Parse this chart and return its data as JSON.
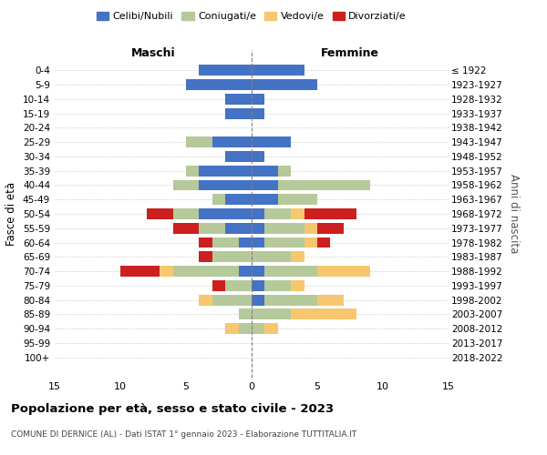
{
  "age_groups": [
    "0-4",
    "5-9",
    "10-14",
    "15-19",
    "20-24",
    "25-29",
    "30-34",
    "35-39",
    "40-44",
    "45-49",
    "50-54",
    "55-59",
    "60-64",
    "65-69",
    "70-74",
    "75-79",
    "80-84",
    "85-89",
    "90-94",
    "95-99",
    "100+"
  ],
  "birth_years": [
    "2018-2022",
    "2013-2017",
    "2008-2012",
    "2003-2007",
    "1998-2002",
    "1993-1997",
    "1988-1992",
    "1983-1987",
    "1978-1982",
    "1973-1977",
    "1968-1972",
    "1963-1967",
    "1958-1962",
    "1953-1957",
    "1948-1952",
    "1943-1947",
    "1938-1942",
    "1933-1937",
    "1928-1932",
    "1923-1927",
    "≤ 1922"
  ],
  "male": {
    "celibi": [
      4,
      5,
      2,
      2,
      0,
      3,
      2,
      4,
      4,
      2,
      4,
      2,
      1,
      0,
      1,
      0,
      0,
      0,
      0,
      0,
      0
    ],
    "coniugati": [
      0,
      0,
      0,
      0,
      0,
      2,
      0,
      1,
      2,
      1,
      2,
      2,
      2,
      3,
      5,
      2,
      3,
      1,
      1,
      0,
      0
    ],
    "vedovi": [
      0,
      0,
      0,
      0,
      0,
      0,
      0,
      0,
      0,
      0,
      0,
      0,
      0,
      0,
      1,
      0,
      1,
      0,
      1,
      0,
      0
    ],
    "divorziati": [
      0,
      0,
      0,
      0,
      0,
      0,
      0,
      0,
      0,
      0,
      2,
      2,
      1,
      1,
      3,
      1,
      0,
      0,
      0,
      0,
      0
    ]
  },
  "female": {
    "celibi": [
      4,
      5,
      1,
      1,
      0,
      3,
      1,
      2,
      2,
      2,
      1,
      1,
      1,
      0,
      1,
      1,
      1,
      0,
      0,
      0,
      0
    ],
    "coniugati": [
      0,
      0,
      0,
      0,
      0,
      0,
      0,
      1,
      7,
      3,
      2,
      3,
      3,
      3,
      4,
      2,
      4,
      3,
      1,
      0,
      0
    ],
    "vedovi": [
      0,
      0,
      0,
      0,
      0,
      0,
      0,
      0,
      0,
      0,
      1,
      1,
      1,
      1,
      4,
      1,
      2,
      5,
      1,
      0,
      0
    ],
    "divorziati": [
      0,
      0,
      0,
      0,
      0,
      0,
      0,
      0,
      0,
      0,
      4,
      2,
      1,
      0,
      0,
      0,
      0,
      0,
      0,
      0,
      0
    ]
  },
  "colors": {
    "celibi": "#4472C4",
    "coniugati": "#b5c99a",
    "vedovi": "#f6c76e",
    "divorziati": "#cc1f1f"
  },
  "xlim": 15,
  "title": "Popolazione per età, sesso e stato civile - 2023",
  "subtitle": "COMUNE DI DERNICE (AL) - Dati ISTAT 1° gennaio 2023 - Elaborazione TUTTITALIA.IT",
  "ylabel_left": "Fasce di età",
  "ylabel_right": "Anni di nascita",
  "xlabel_left": "Maschi",
  "xlabel_right": "Femmine"
}
